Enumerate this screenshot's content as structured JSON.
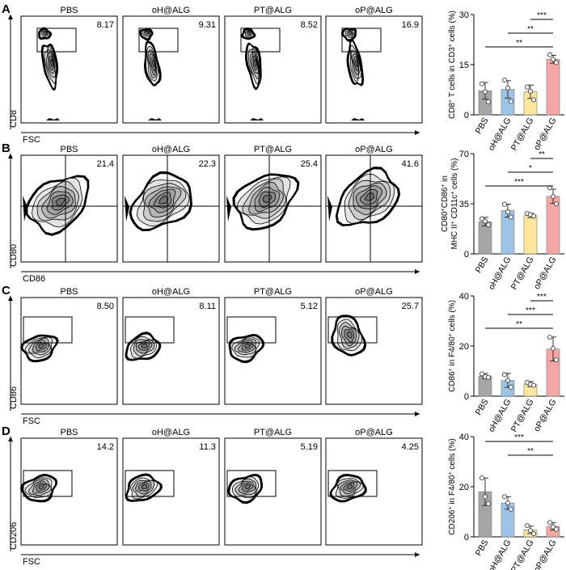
{
  "panels": [
    {
      "letter": "A",
      "groups": [
        "PBS",
        "oH@ALG",
        "PT@ALG",
        "oP@ALG"
      ],
      "values": [
        "8.17",
        "9.31",
        "8.52",
        "16.9"
      ],
      "show_group_labels": true,
      "y_axis_label": "CD8",
      "x_axis_label": "FSC"
    },
    {
      "letter": "B",
      "groups": [
        "PBS",
        "oH@ALG",
        "PT@ALG",
        "oP@ALG"
      ],
      "values": [
        "21.4",
        "22.3",
        "25.4",
        "41.6"
      ],
      "show_group_labels": true,
      "y_axis_label": "CD80",
      "x_axis_label": "CD86"
    },
    {
      "letter": "C",
      "groups": [
        "PBS",
        "oH@ALG",
        "PT@ALG",
        "oP@ALG"
      ],
      "values": [
        "8.50",
        "8.11",
        "5.12",
        "25.7"
      ],
      "show_group_labels": true,
      "y_axis_label": "CD86",
      "x_axis_label": "FSC"
    },
    {
      "letter": "D",
      "groups": [
        "PBS",
        "oH@ALG",
        "PT@ALG",
        "oP@ALG"
      ],
      "values": [
        "14.2",
        "11.3",
        "5.19",
        "4.25"
      ],
      "show_group_labels": true,
      "y_axis_label": "CD206",
      "x_axis_label": "FSC"
    }
  ],
  "colors": {
    "PBS": "#a6a6a6",
    "oH@ALG": "#9dc3e6",
    "PT@ALG": "#ffe699",
    "oP@ALG": "#f4a7a3"
  },
  "chart_data": [
    {
      "type": "bar",
      "categories": [
        "PBS",
        "oH@ALG",
        "PT@ALG",
        "oP@ALG"
      ],
      "values": [
        7.2,
        7.6,
        6.9,
        16.6
      ],
      "errors": [
        2.5,
        2.6,
        2.0,
        1.2
      ],
      "points": [
        [
          9.3,
          6.9,
          3.9
        ],
        [
          10.4,
          8.0,
          4.0
        ],
        [
          8.3,
          7.0,
          4.5
        ],
        [
          18.0,
          16.6,
          15.6
        ]
      ],
      "ylabel_parts": [
        "CD8",
        "+",
        " T cells in CD3",
        "+",
        " cells (%)"
      ],
      "ylim": [
        0,
        30
      ],
      "yticks": [
        "0",
        "15",
        "30"
      ],
      "significance": [
        {
          "from": 2,
          "to": 3,
          "label": "***"
        },
        {
          "from": 1,
          "to": 3,
          "label": "**"
        },
        {
          "from": 0,
          "to": 3,
          "label": "**"
        }
      ]
    },
    {
      "type": "bar",
      "categories": [
        "PBS",
        "oH@ALG",
        "PT@ALG",
        "oP@ALG"
      ],
      "values": [
        22.5,
        30.2,
        26.8,
        40.2
      ],
      "errors": [
        3.0,
        4.5,
        1.5,
        5.0
      ],
      "points": [
        [
          24.5,
          22.8,
          20.3
        ],
        [
          34.6,
          29.3,
          25.7
        ],
        [
          28.3,
          27.4,
          26.3
        ],
        [
          46.2,
          40.0,
          35.0
        ]
      ],
      "ylabel_parts": [
        "CD80",
        "+",
        "CD86",
        "+",
        " in"
      ],
      "ylabel2_parts": [
        "MHC II",
        "+",
        " CD11c",
        "+",
        " cells (%)"
      ],
      "ylim": [
        0,
        70
      ],
      "yticks": [
        "0",
        "35",
        "70"
      ],
      "significance": [
        {
          "from": 2,
          "to": 3,
          "label": "**"
        },
        {
          "from": 1,
          "to": 3,
          "label": "*"
        },
        {
          "from": 0,
          "to": 3,
          "label": "***"
        }
      ]
    },
    {
      "type": "bar",
      "categories": [
        "PBS",
        "oH@ALG",
        "PT@ALG",
        "oP@ALG"
      ],
      "values": [
        8.0,
        6.3,
        4.8,
        18.8
      ],
      "errors": [
        1.0,
        2.8,
        1.0,
        4.8
      ],
      "points": [
        [
          8.9,
          7.8,
          7.5
        ],
        [
          8.6,
          6.3,
          3.6
        ],
        [
          5.5,
          4.7,
          4.3
        ],
        [
          23.5,
          19.0,
          14.5
        ]
      ],
      "ylabel_parts": [
        "CD86",
        "+",
        " in F4/80",
        "+",
        " cells (%)"
      ],
      "ylim": [
        0,
        40
      ],
      "yticks": [
        "0",
        "20",
        "40"
      ],
      "significance": [
        {
          "from": 2,
          "to": 3,
          "label": "***"
        },
        {
          "from": 1,
          "to": 3,
          "label": "***"
        },
        {
          "from": 0,
          "to": 3,
          "label": "**"
        }
      ]
    },
    {
      "type": "bar",
      "categories": [
        "PBS",
        "oH@ALG",
        "PT@ALG",
        "oP@ALG"
      ],
      "values": [
        18.0,
        13.5,
        2.8,
        4.2
      ],
      "errors": [
        5.5,
        2.5,
        1.5,
        1.5
      ],
      "points": [
        [
          23.5,
          16.0,
          13.2
        ],
        [
          16.0,
          13.5,
          11.0
        ],
        [
          4.5,
          2.5,
          1.3
        ],
        [
          5.7,
          4.0,
          3.0
        ]
      ],
      "ylabel_parts": [
        "CD206",
        "+",
        " in F4/80",
        "+",
        " cells (%)"
      ],
      "ylim": [
        0,
        40
      ],
      "yticks": [
        "0",
        "20",
        "40"
      ],
      "significance": [
        {
          "from": 0,
          "to": 3,
          "label": "***"
        },
        {
          "from": 1,
          "to": 3,
          "label": "**"
        }
      ]
    }
  ]
}
